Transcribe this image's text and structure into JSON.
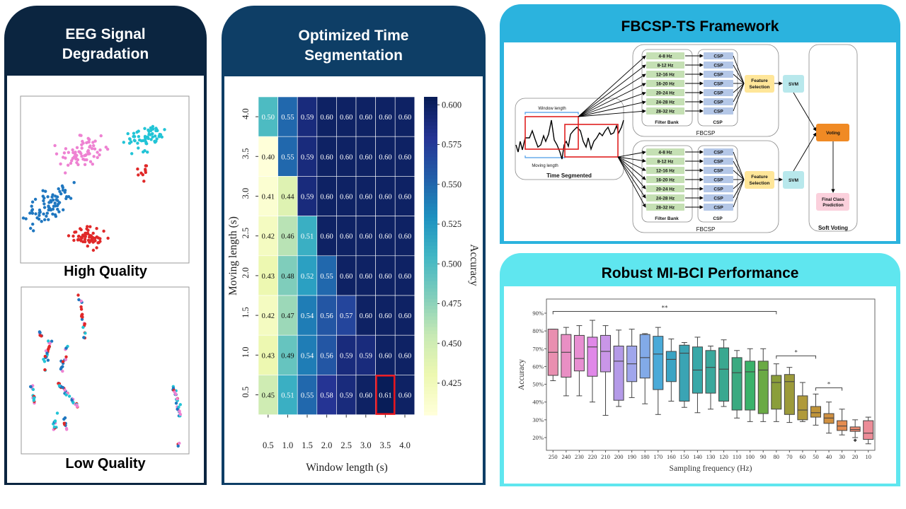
{
  "panels": {
    "degradation": {
      "title_line1": "EEG Signal",
      "title_line2": "Degradation",
      "high_label": "High Quality",
      "low_label": "Low Quality",
      "header_color": "#0b2540"
    },
    "segmentation": {
      "title_line1": "Optimized Time",
      "title_line2": "Segmentation",
      "header_color": "#0e3e66"
    },
    "framework": {
      "title": "FBCSP-TS Framework",
      "header_color": "#2bb3de"
    },
    "performance": {
      "title": "Robust MI-BCI Performance",
      "header_color": "#5fe6ef"
    }
  },
  "diagram": {
    "window_length": "Window length",
    "moving_length": "Moving length",
    "time_segmented": "Time Segmented",
    "bands": [
      "4-8 Hz",
      "8-12 Hz",
      "12-16 Hz",
      "16-20 Hz",
      "20-24 Hz",
      "24-28 Hz",
      "28-32 Hz"
    ],
    "csp": "CSP",
    "filter_bank": "Filter Bank",
    "csp_group": "CSP",
    "fbcsp": "FBCSP",
    "feature_selection_1": "Feature",
    "feature_selection_2": "Selection",
    "svm": "SVM",
    "voting": "Voting",
    "final_1": "Final Class",
    "final_2": "Prediction",
    "soft_voting": "Soft Voting",
    "colors": {
      "band": "#c5e0b4",
      "csp": "#b4c7e7",
      "feature": "#ffe699",
      "svm": "#b8e8ec",
      "voting": "#f08a24",
      "final": "#fbd0dc",
      "segment": "#e02020",
      "bracket": "#4a9be8"
    }
  },
  "chart_data": [
    {
      "type": "scatter",
      "title": "High Quality",
      "series": [
        {
          "color": "#ee82d2"
        },
        {
          "color": "#22c4d6"
        },
        {
          "color": "#1f77c0"
        },
        {
          "color": "#e02828"
        }
      ]
    },
    {
      "type": "scatter",
      "title": "Low Quality",
      "series": [
        {
          "color": "#ee82d2"
        },
        {
          "color": "#22c4d6"
        },
        {
          "color": "#1f77c0"
        },
        {
          "color": "#e02828"
        }
      ]
    },
    {
      "type": "heatmap",
      "xlabel": "Window length (s)",
      "ylabel": "Moving length (s)",
      "colorbar_label": "Accuracy",
      "x": [
        "0.5",
        "1.0",
        "1.5",
        "2.0",
        "2.5",
        "3.0",
        "3.5",
        "4.0"
      ],
      "y": [
        "4.0",
        "3.5",
        "3.0",
        "2.5",
        "2.0",
        "1.5",
        "1.0",
        "0.5"
      ],
      "values": [
        [
          0.5,
          0.55,
          0.59,
          0.6,
          0.6,
          0.6,
          0.6,
          0.6
        ],
        [
          0.4,
          0.55,
          0.59,
          0.6,
          0.6,
          0.6,
          0.6,
          0.6
        ],
        [
          0.41,
          0.44,
          0.59,
          0.6,
          0.6,
          0.6,
          0.6,
          0.6
        ],
        [
          0.42,
          0.46,
          0.51,
          0.6,
          0.6,
          0.6,
          0.6,
          0.6
        ],
        [
          0.43,
          0.48,
          0.52,
          0.55,
          0.6,
          0.6,
          0.6,
          0.6
        ],
        [
          0.42,
          0.47,
          0.54,
          0.56,
          0.57,
          0.6,
          0.6,
          0.6
        ],
        [
          0.43,
          0.49,
          0.54,
          0.56,
          0.59,
          0.59,
          0.6,
          0.6
        ],
        [
          0.45,
          0.51,
          0.55,
          0.58,
          0.59,
          0.6,
          0.61,
          0.6
        ]
      ],
      "highlight": {
        "x": "3.5",
        "y": "0.5"
      },
      "colorbar_range": [
        0.405,
        0.605
      ],
      "colorbar_ticks": [
        "0.425",
        "0.450",
        "0.475",
        "0.500",
        "0.525",
        "0.550",
        "0.575",
        "0.600"
      ],
      "colormap": "YlGnBu"
    },
    {
      "type": "box",
      "xlabel": "Sampling frequency (Hz)",
      "ylabel": "Accuracy",
      "ylim": [
        17,
        93
      ],
      "yticks": [
        "20%",
        "30%",
        "40%",
        "50%",
        "60%",
        "70%",
        "80%",
        "90%"
      ],
      "categories": [
        "250",
        "240",
        "230",
        "220",
        "210",
        "200",
        "190",
        "180",
        "170",
        "160",
        "150",
        "140",
        "130",
        "120",
        "110",
        "100",
        "90",
        "80",
        "70",
        "60",
        "50",
        "40",
        "30",
        "20",
        "10"
      ],
      "boxes": [
        [
          52,
          55,
          68,
          81,
          81
        ],
        [
          43.5,
          54,
          68,
          78,
          82
        ],
        [
          43.5,
          57.5,
          64.5,
          77.5,
          83
        ],
        [
          40,
          54.5,
          71,
          76.5,
          86
        ],
        [
          32.5,
          57,
          68.5,
          77.5,
          83
        ],
        [
          37.5,
          41,
          63,
          71.5,
          80.5
        ],
        [
          42.5,
          51.5,
          61.5,
          71.5,
          81
        ],
        [
          39,
          53.5,
          65,
          78,
          78.5
        ],
        [
          33,
          47,
          67,
          77,
          82
        ],
        [
          40.5,
          51.5,
          64,
          68.5,
          75.5
        ],
        [
          37,
          40.5,
          67.5,
          72,
          73.5
        ],
        [
          34,
          45,
          58,
          71,
          76.5
        ],
        [
          36,
          45,
          59.5,
          69,
          71.5
        ],
        [
          37.5,
          40.5,
          58.5,
          70.5,
          75
        ],
        [
          31,
          35.5,
          56.5,
          65,
          69
        ],
        [
          29,
          35.5,
          57,
          63,
          70
        ],
        [
          29,
          33.5,
          58,
          63,
          70
        ],
        [
          29,
          36,
          51,
          55,
          61.5
        ],
        [
          28.5,
          33,
          51.5,
          55.5,
          59.5
        ],
        [
          29,
          30,
          35.5,
          43.5,
          51
        ],
        [
          27,
          31.5,
          34,
          37.5,
          44.5
        ],
        [
          22.5,
          28,
          31,
          33.5,
          40
        ],
        [
          21.5,
          24,
          26.5,
          29.5,
          36
        ],
        [
          20,
          23.5,
          24.5,
          26,
          30
        ],
        [
          16.5,
          19,
          22.5,
          29.5,
          31.5
        ]
      ],
      "outliers": [
        {
          "category": "20",
          "value": 18.5
        }
      ],
      "colors": [
        "#e98fb0",
        "#e98fc4",
        "#e88fd2",
        "#e088e8",
        "#c996e8",
        "#b49ae8",
        "#a0a6ec",
        "#82aae8",
        "#4aaad8",
        "#3aa4c4",
        "#3aa4b4",
        "#38a8a8",
        "#3aa89c",
        "#3aa890",
        "#3aaa80",
        "#3ab26a",
        "#6aaa44",
        "#8a9e3a",
        "#9c9a3a",
        "#b09a3a",
        "#c09438",
        "#d09040",
        "#e48c50",
        "#ec8a70",
        "#ec8c98"
      ],
      "significance": [
        {
          "from": "250",
          "to": "80",
          "label": "**",
          "level": 91
        },
        {
          "from": "80",
          "to": "50",
          "label": "*",
          "level": 66
        },
        {
          "from": "50",
          "to": "30",
          "label": "*",
          "level": 48
        }
      ]
    }
  ]
}
